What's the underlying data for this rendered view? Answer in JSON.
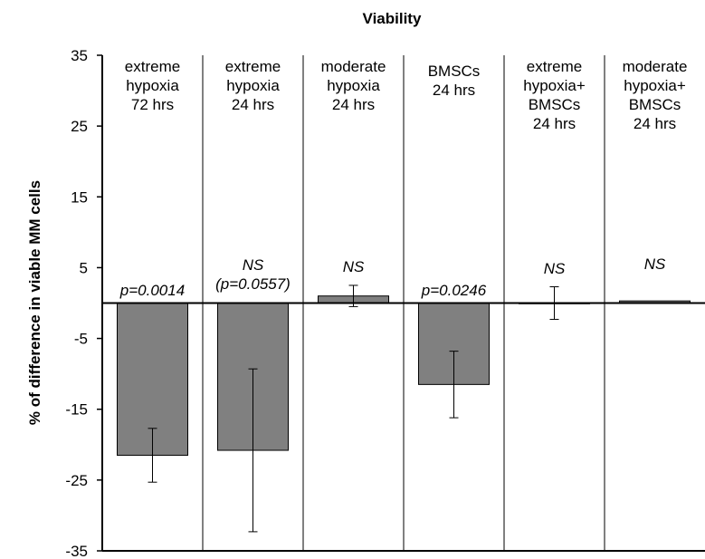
{
  "chart_data": {
    "type": "bar",
    "title": "Viability",
    "xlabel": "",
    "ylabel": "% of difference in viable MM cells",
    "ylim": [
      -35,
      35
    ],
    "yticks": [
      35,
      25,
      15,
      5,
      -5,
      -15,
      -25,
      -35
    ],
    "grid": false,
    "categories": [
      [
        "extreme",
        "hypoxia",
        "72 hrs"
      ],
      [
        "extreme",
        "hypoxia",
        "24 hrs"
      ],
      [
        "moderate",
        "hypoxia",
        "24 hrs"
      ],
      [
        "BMSCs",
        "24 hrs"
      ],
      [
        "extreme",
        "hypoxia+",
        "BMSCs",
        "24 hrs"
      ],
      [
        "moderate",
        "hypoxia+",
        "BMSCs",
        "24 hrs"
      ]
    ],
    "values": [
      -21.5,
      -20.8,
      1.0,
      -11.5,
      0,
      0.3
    ],
    "error": [
      3.8,
      11.5,
      1.5,
      4.7,
      2.3,
      0
    ],
    "annotations": [
      [
        "p=0.0014"
      ],
      [
        "NS",
        "(p=0.0557)"
      ],
      [
        "NS"
      ],
      [
        "p=0.0246"
      ],
      [
        "NS"
      ],
      [
        "NS"
      ]
    ],
    "bar_color": "#808080"
  }
}
